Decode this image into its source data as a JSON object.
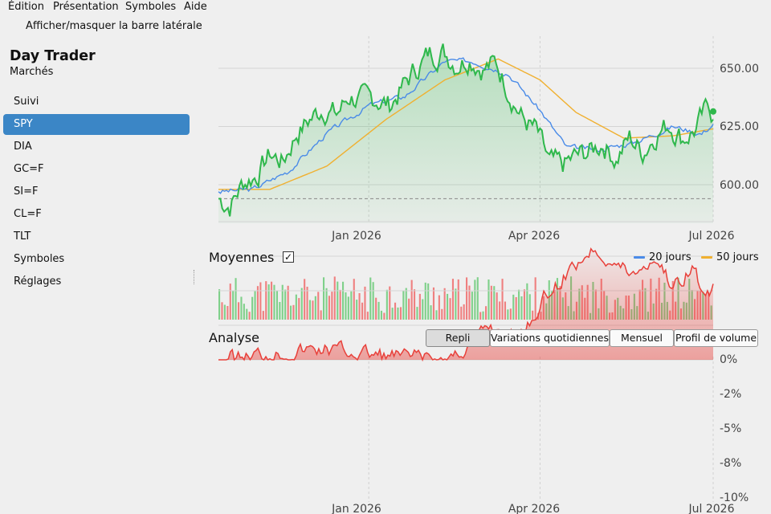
{
  "menu": [
    "Édition",
    "Présentation",
    "Symboles",
    "Aide"
  ],
  "toolbar": {
    "toggle_sidebar": "Afficher/masquer la barre latérale"
  },
  "sidebar": {
    "title": "Day Trader",
    "subtitle": "Marchés",
    "items": [
      {
        "label": "Suivi",
        "selected": false
      },
      {
        "label": "SPY",
        "selected": true
      },
      {
        "label": "DIA",
        "selected": false
      },
      {
        "label": "GC=F",
        "selected": false
      },
      {
        "label": "SI=F",
        "selected": false
      },
      {
        "label": "CL=F",
        "selected": false
      },
      {
        "label": "TLT",
        "selected": false
      },
      {
        "label": "Symboles",
        "selected": false
      },
      {
        "label": "Réglages",
        "selected": false
      }
    ]
  },
  "colors": {
    "price_line": "#2fb84c",
    "ma20": "#4a8be8",
    "ma50": "#f0b030",
    "volume_up": "#7fd08a",
    "volume_down": "#ef8080",
    "drawdown": "#e8403a",
    "selected": "#3b86c6"
  },
  "averages": {
    "label": "Moyennes",
    "checked": true,
    "check_glyph": "✓",
    "legend": [
      {
        "name": "20 jours",
        "color": "#4a8be8"
      },
      {
        "name": "50 jours",
        "color": "#f0b030"
      }
    ]
  },
  "analysis": {
    "label": "Analyse",
    "buttons": [
      {
        "label": "Repli",
        "active": true
      },
      {
        "label": "Variations quotidiennes",
        "active": false
      },
      {
        "label": "Mensuel",
        "active": false
      },
      {
        "label": "Profil de volume",
        "active": false
      }
    ]
  },
  "chart_data": [
    {
      "type": "line",
      "title": "",
      "x_range": [
        "2025-10-14",
        "2026-07-01"
      ],
      "x_ticks": [
        "Jan 2026",
        "Apr 2026",
        "Jul 2026"
      ],
      "y_ticks": [
        "650.00",
        "625.00",
        "600.00"
      ],
      "ylim": [
        584,
        657
      ],
      "reference_line": 594,
      "grid": true,
      "legend": "top-right",
      "series": [
        {
          "name": "",
          "role": "price",
          "points": [
            [
              "2025-10-14",
              594
            ],
            [
              "2025-10-20",
              591
            ],
            [
              "2025-10-27",
              601
            ],
            [
              "2025-11-03",
              604
            ],
            [
              "2025-11-10",
              613
            ],
            [
              "2025-11-17",
              610
            ],
            [
              "2025-11-24",
              622
            ],
            [
              "2025-12-01",
              628
            ],
            [
              "2025-12-08",
              633
            ],
            [
              "2025-12-15",
              630
            ],
            [
              "2025-12-22",
              638
            ],
            [
              "2025-12-29",
              636
            ],
            [
              "2026-01-05",
              637
            ],
            [
              "2026-01-12",
              634
            ],
            [
              "2026-01-19",
              642
            ],
            [
              "2026-01-26",
              650
            ],
            [
              "2026-02-02",
              656
            ],
            [
              "2026-02-09",
              657
            ],
            [
              "2026-02-16",
              652
            ],
            [
              "2026-02-23",
              655
            ],
            [
              "2026-03-02",
              650
            ],
            [
              "2026-03-09",
              652
            ],
            [
              "2026-03-16",
              640
            ],
            [
              "2026-03-23",
              628
            ],
            [
              "2026-03-30",
              623
            ],
            [
              "2026-04-06",
              609
            ],
            [
              "2026-04-13",
              608
            ],
            [
              "2026-04-20",
              612
            ],
            [
              "2026-04-27",
              614
            ],
            [
              "2026-05-04",
              618
            ],
            [
              "2026-05-11",
              611
            ],
            [
              "2026-05-18",
              620
            ],
            [
              "2026-05-25",
              614
            ],
            [
              "2026-06-01",
              622
            ],
            [
              "2026-06-08",
              626
            ],
            [
              "2026-06-15",
              620
            ],
            [
              "2026-06-22",
              624
            ],
            [
              "2026-06-29",
              634
            ],
            [
              "2026-07-01",
              628
            ]
          ]
        },
        {
          "name": "20 jours",
          "points": [
            [
              "2025-10-14",
              597
            ],
            [
              "2025-11-01",
              598
            ],
            [
              "2025-11-20",
              606
            ],
            [
              "2025-12-10",
              622
            ],
            [
              "2026-01-01",
              634
            ],
            [
              "2026-01-20",
              638
            ],
            [
              "2026-02-10",
              653
            ],
            [
              "2026-02-25",
              653
            ],
            [
              "2026-03-15",
              648
            ],
            [
              "2026-04-01",
              632
            ],
            [
              "2026-04-15",
              616
            ],
            [
              "2026-05-01",
              615
            ],
            [
              "2026-05-20",
              618
            ],
            [
              "2026-06-10",
              625
            ],
            [
              "2026-06-25",
              622
            ],
            [
              "2026-07-01",
              626
            ]
          ]
        },
        {
          "name": "50 jours",
          "points": [
            [
              "2025-10-14",
              598
            ],
            [
              "2025-11-10",
              598
            ],
            [
              "2025-12-10",
              608
            ],
            [
              "2026-01-10",
              628
            ],
            [
              "2026-02-10",
              645
            ],
            [
              "2026-03-10",
              654
            ],
            [
              "2026-04-01",
              645
            ],
            [
              "2026-04-20",
              631
            ],
            [
              "2026-05-15",
              620
            ],
            [
              "2026-06-10",
              621
            ],
            [
              "2026-07-01",
              624
            ]
          ]
        }
      ]
    },
    {
      "type": "bar",
      "title": "",
      "description": "volume",
      "bar_count": 180,
      "colors": [
        "up",
        "down"
      ]
    },
    {
      "type": "area",
      "title": "",
      "x_range": [
        "2025-10-14",
        "2026-07-01"
      ],
      "x_ticks": [
        "Jan 2026",
        "Apr 2026",
        "Jul 2026"
      ],
      "y_ticks": [
        "0%",
        "-2%",
        "-5%",
        "-8%",
        "-10%"
      ],
      "ylim": [
        -10,
        0
      ],
      "grid": true,
      "series": [
        {
          "name": "",
          "points": [
            [
              "2025-10-14",
              0
            ],
            [
              "2025-11-10",
              -0.5
            ],
            [
              "2025-12-10",
              -0.8
            ],
            [
              "2026-01-10",
              -0.3
            ],
            [
              "2026-02-10",
              0
            ],
            [
              "2026-02-25",
              -1.2
            ],
            [
              "2026-03-05",
              -2.5
            ],
            [
              "2026-03-20",
              -1.5
            ],
            [
              "2026-04-01",
              -4
            ],
            [
              "2026-04-10",
              -5.5
            ],
            [
              "2026-04-20",
              -7
            ],
            [
              "2026-04-30",
              -8.2
            ],
            [
              "2026-05-10",
              -7
            ],
            [
              "2026-05-20",
              -6.2
            ],
            [
              "2026-06-01",
              -7.5
            ],
            [
              "2026-06-10",
              -5.2
            ],
            [
              "2026-06-20",
              -6.8
            ],
            [
              "2026-06-27",
              -4.3
            ],
            [
              "2026-07-01",
              -5.5
            ]
          ]
        }
      ]
    }
  ]
}
